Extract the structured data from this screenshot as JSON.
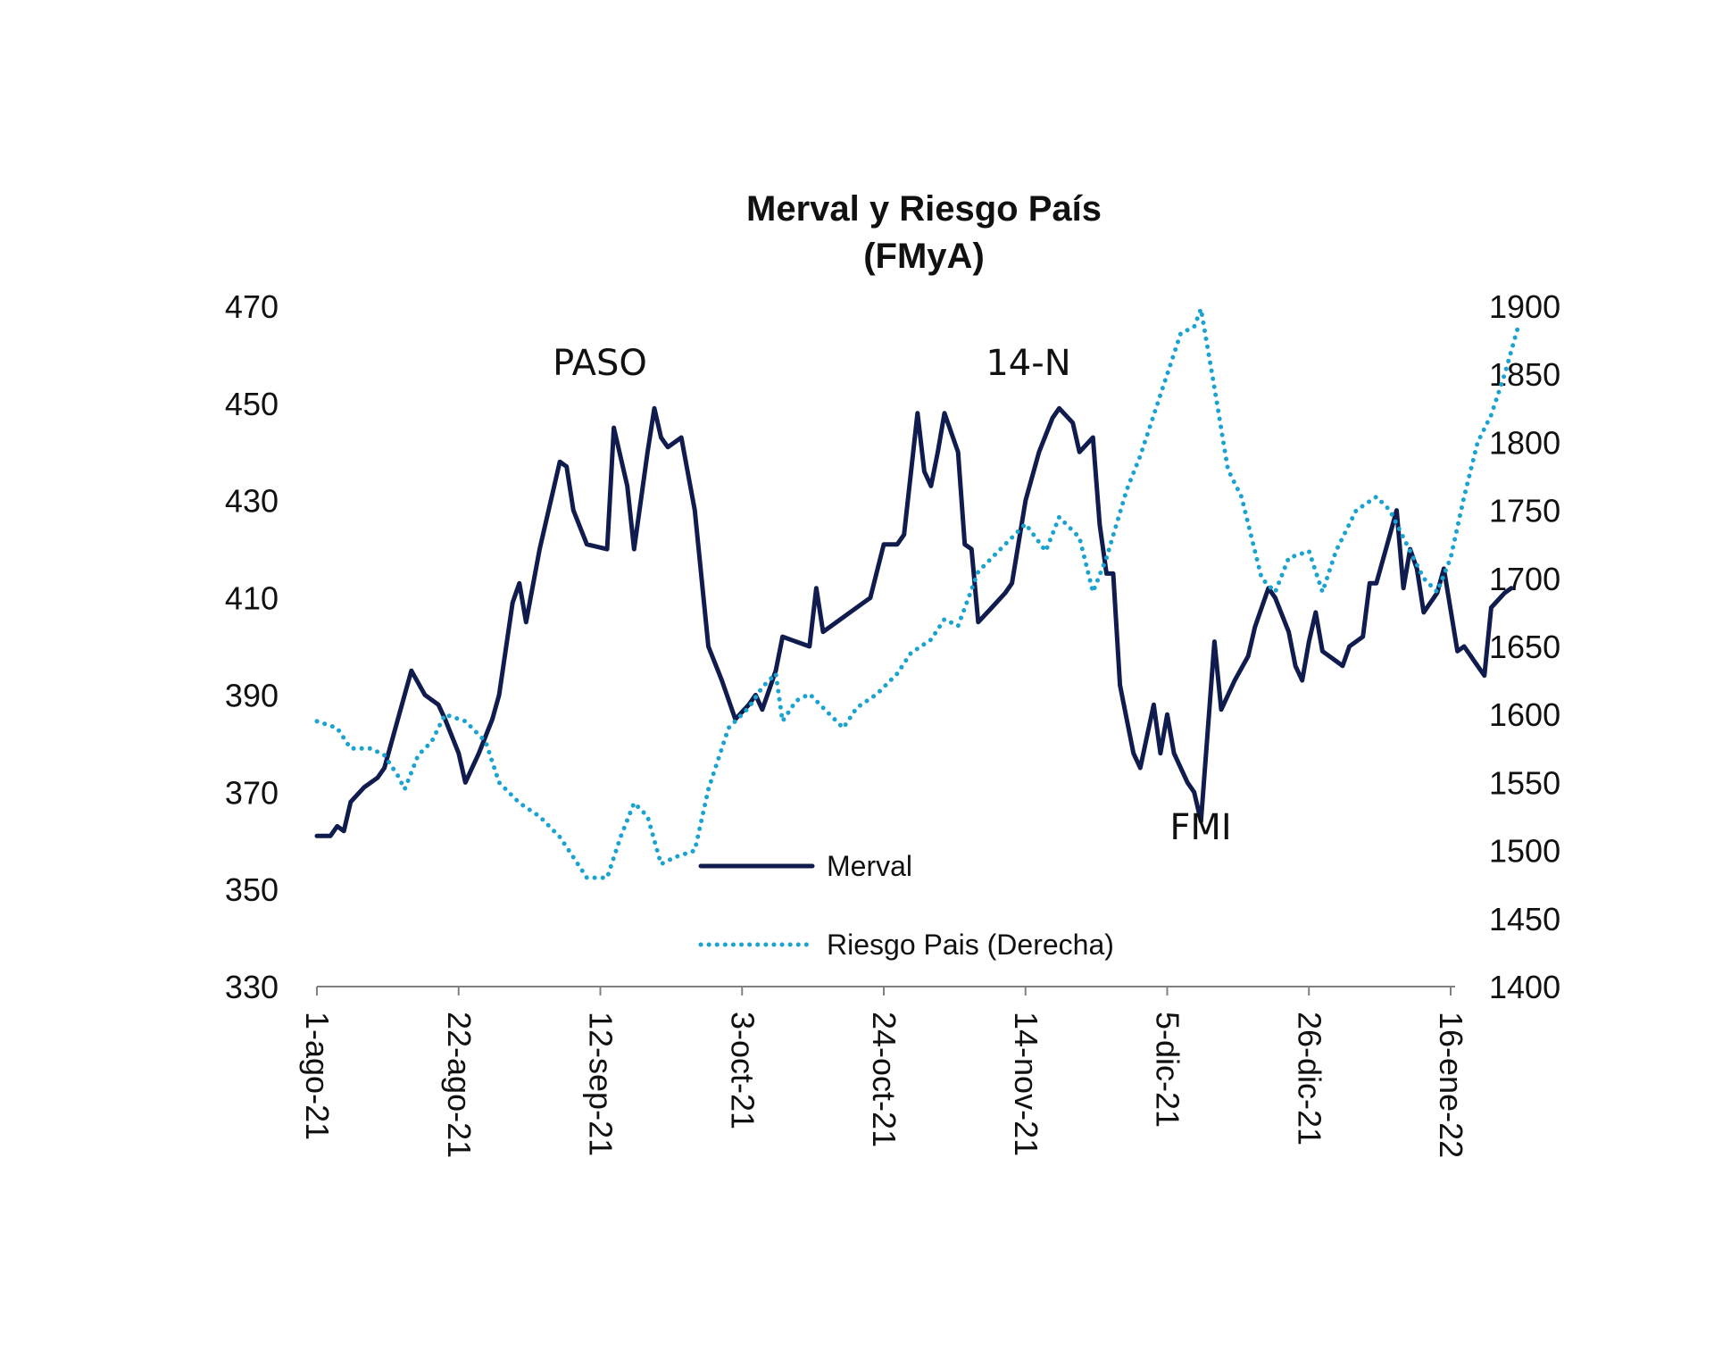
{
  "chart_data": {
    "type": "line",
    "title": "Merval y Riesgo País",
    "subtitle": "(FMyA)",
    "grid": false,
    "legend_position": "bottom-center",
    "x_tick_labels": [
      "1-ago-21",
      "22-ago-21",
      "12-sep-21",
      "3-oct-21",
      "24-oct-21",
      "14-nov-21",
      "5-dic-21",
      "26-dic-21",
      "16-ene-22"
    ],
    "y_left": {
      "range": [
        330,
        470
      ],
      "ticks": [
        470,
        450,
        430,
        410,
        390,
        370,
        350,
        330
      ]
    },
    "y_right": {
      "range": [
        1400,
        1900
      ],
      "ticks": [
        1900,
        1850,
        1800,
        1750,
        1700,
        1650,
        1600,
        1550,
        1500,
        1450,
        1400
      ]
    },
    "annotations": [
      {
        "text": "PASO",
        "x": "12-sep-21",
        "y": 455,
        "axis": "left"
      },
      {
        "text": "14-N",
        "x": "14-nov-21",
        "y": 455,
        "axis": "left"
      },
      {
        "text": "FMI",
        "x": "5-dic-21",
        "y": 361,
        "axis": "left"
      }
    ],
    "series": [
      {
        "name": "Merval",
        "axis": "left",
        "color": "#0f1c4d",
        "style": "solid",
        "points": [
          [
            "2021-08-01",
            361
          ],
          [
            "2021-08-03",
            361
          ],
          [
            "2021-08-04",
            363
          ],
          [
            "2021-08-05",
            362
          ],
          [
            "2021-08-06",
            368
          ],
          [
            "2021-08-08",
            371
          ],
          [
            "2021-08-10",
            373
          ],
          [
            "2021-08-11",
            375
          ],
          [
            "2021-08-13",
            385
          ],
          [
            "2021-08-15",
            395
          ],
          [
            "2021-08-17",
            390
          ],
          [
            "2021-08-19",
            388
          ],
          [
            "2021-08-20",
            385
          ],
          [
            "2021-08-22",
            378
          ],
          [
            "2021-08-23",
            372
          ],
          [
            "2021-08-25",
            378
          ],
          [
            "2021-08-27",
            385
          ],
          [
            "2021-08-28",
            390
          ],
          [
            "2021-08-30",
            409
          ],
          [
            "2021-08-31",
            413
          ],
          [
            "2021-09-01",
            405
          ],
          [
            "2021-09-03",
            420
          ],
          [
            "2021-09-06",
            438
          ],
          [
            "2021-09-07",
            437
          ],
          [
            "2021-09-08",
            428
          ],
          [
            "2021-09-10",
            421
          ],
          [
            "2021-09-13",
            420
          ],
          [
            "2021-09-14",
            445
          ],
          [
            "2021-09-16",
            433
          ],
          [
            "2021-09-17",
            420
          ],
          [
            "2021-09-19",
            440
          ],
          [
            "2021-09-20",
            449
          ],
          [
            "2021-09-21",
            443
          ],
          [
            "2021-09-22",
            441
          ],
          [
            "2021-09-24",
            443
          ],
          [
            "2021-09-26",
            428
          ],
          [
            "2021-09-28",
            400
          ],
          [
            "2021-09-30",
            393
          ],
          [
            "2021-10-02",
            385
          ],
          [
            "2021-10-04",
            388
          ],
          [
            "2021-10-05",
            390
          ],
          [
            "2021-10-06",
            387
          ],
          [
            "2021-10-08",
            395
          ],
          [
            "2021-10-09",
            402
          ],
          [
            "2021-10-11",
            401
          ],
          [
            "2021-10-13",
            400
          ],
          [
            "2021-10-14",
            412
          ],
          [
            "2021-10-15",
            403
          ],
          [
            "2021-10-17",
            405
          ],
          [
            "2021-10-19",
            407
          ],
          [
            "2021-10-21",
            409
          ],
          [
            "2021-10-22",
            410
          ],
          [
            "2021-10-24",
            421
          ],
          [
            "2021-10-26",
            421
          ],
          [
            "2021-10-27",
            423
          ],
          [
            "2021-10-29",
            448
          ],
          [
            "2021-10-30",
            436
          ],
          [
            "2021-10-31",
            433
          ],
          [
            "2021-11-01",
            440
          ],
          [
            "2021-11-02",
            448
          ],
          [
            "2021-11-04",
            440
          ],
          [
            "2021-11-05",
            421
          ],
          [
            "2021-11-06",
            420
          ],
          [
            "2021-11-07",
            405
          ],
          [
            "2021-11-09",
            408
          ],
          [
            "2021-11-11",
            411
          ],
          [
            "2021-11-12",
            413
          ],
          [
            "2021-11-14",
            430
          ],
          [
            "2021-11-16",
            440
          ],
          [
            "2021-11-18",
            447
          ],
          [
            "2021-11-19",
            449
          ],
          [
            "2021-11-21",
            446
          ],
          [
            "2021-11-22",
            440
          ],
          [
            "2021-11-24",
            443
          ],
          [
            "2021-11-25",
            425
          ],
          [
            "2021-11-26",
            415
          ],
          [
            "2021-11-27",
            415
          ],
          [
            "2021-11-28",
            392
          ],
          [
            "2021-11-30",
            378
          ],
          [
            "2021-12-01",
            375
          ],
          [
            "2021-12-03",
            388
          ],
          [
            "2021-12-04",
            378
          ],
          [
            "2021-12-05",
            386
          ],
          [
            "2021-12-06",
            378
          ],
          [
            "2021-12-08",
            372
          ],
          [
            "2021-12-09",
            370
          ],
          [
            "2021-12-10",
            364
          ],
          [
            "2021-12-12",
            401
          ],
          [
            "2021-12-13",
            387
          ],
          [
            "2021-12-15",
            393
          ],
          [
            "2021-12-17",
            398
          ],
          [
            "2021-12-18",
            404
          ],
          [
            "2021-12-20",
            412
          ],
          [
            "2021-12-21",
            410
          ],
          [
            "2021-12-23",
            403
          ],
          [
            "2021-12-24",
            396
          ],
          [
            "2021-12-25",
            393
          ],
          [
            "2021-12-26",
            401
          ],
          [
            "2021-12-27",
            407
          ],
          [
            "2021-12-28",
            399
          ],
          [
            "2021-12-30",
            397
          ],
          [
            "2021-12-31",
            396
          ],
          [
            "2022-01-01",
            400
          ],
          [
            "2022-01-03",
            402
          ],
          [
            "2022-01-04",
            413
          ],
          [
            "2022-01-05",
            413
          ],
          [
            "2022-01-07",
            423
          ],
          [
            "2022-01-08",
            428
          ],
          [
            "2022-01-09",
            412
          ],
          [
            "2022-01-10",
            420
          ],
          [
            "2022-01-11",
            416
          ],
          [
            "2022-01-12",
            407
          ],
          [
            "2022-01-14",
            411
          ],
          [
            "2022-01-15",
            416
          ],
          [
            "2022-01-17",
            399
          ],
          [
            "2022-01-18",
            400
          ],
          [
            "2022-01-20",
            396
          ],
          [
            "2022-01-21",
            394
          ],
          [
            "2022-01-22",
            408
          ],
          [
            "2022-01-24",
            411
          ],
          [
            "2022-01-25",
            412
          ]
        ]
      },
      {
        "name": "Riesgo Pais (Derecha)",
        "axis": "right",
        "color": "#1aa3d0",
        "style": "dotted",
        "points": [
          [
            "2021-08-01",
            1595
          ],
          [
            "2021-08-04",
            1590
          ],
          [
            "2021-08-06",
            1575
          ],
          [
            "2021-08-09",
            1575
          ],
          [
            "2021-08-11",
            1570
          ],
          [
            "2021-08-13",
            1555
          ],
          [
            "2021-08-14",
            1545
          ],
          [
            "2021-08-16",
            1570
          ],
          [
            "2021-08-18",
            1580
          ],
          [
            "2021-08-20",
            1600
          ],
          [
            "2021-08-23",
            1595
          ],
          [
            "2021-08-26",
            1580
          ],
          [
            "2021-08-28",
            1550
          ],
          [
            "2021-08-31",
            1535
          ],
          [
            "2021-09-03",
            1525
          ],
          [
            "2021-09-06",
            1510
          ],
          [
            "2021-09-08",
            1495
          ],
          [
            "2021-09-10",
            1480
          ],
          [
            "2021-09-13",
            1480
          ],
          [
            "2021-09-15",
            1510
          ],
          [
            "2021-09-17",
            1535
          ],
          [
            "2021-09-19",
            1525
          ],
          [
            "2021-09-21",
            1490
          ],
          [
            "2021-09-23",
            1495
          ],
          [
            "2021-09-26",
            1500
          ],
          [
            "2021-09-28",
            1545
          ],
          [
            "2021-10-01",
            1590
          ],
          [
            "2021-10-04",
            1605
          ],
          [
            "2021-10-06",
            1620
          ],
          [
            "2021-10-08",
            1630
          ],
          [
            "2021-10-09",
            1595
          ],
          [
            "2021-10-11",
            1610
          ],
          [
            "2021-10-13",
            1615
          ],
          [
            "2021-10-16",
            1600
          ],
          [
            "2021-10-18",
            1590
          ],
          [
            "2021-10-20",
            1605
          ],
          [
            "2021-10-23",
            1615
          ],
          [
            "2021-10-26",
            1630
          ],
          [
            "2021-10-28",
            1645
          ],
          [
            "2021-10-31",
            1655
          ],
          [
            "2021-11-02",
            1670
          ],
          [
            "2021-11-04",
            1665
          ],
          [
            "2021-11-07",
            1705
          ],
          [
            "2021-11-10",
            1720
          ],
          [
            "2021-11-12",
            1730
          ],
          [
            "2021-11-14",
            1740
          ],
          [
            "2021-11-17",
            1720
          ],
          [
            "2021-11-19",
            1745
          ],
          [
            "2021-11-22",
            1730
          ],
          [
            "2021-11-24",
            1690
          ],
          [
            "2021-11-26",
            1715
          ],
          [
            "2021-11-29",
            1765
          ],
          [
            "2021-12-01",
            1790
          ],
          [
            "2021-12-03",
            1820
          ],
          [
            "2021-12-05",
            1850
          ],
          [
            "2021-12-07",
            1880
          ],
          [
            "2021-12-09",
            1885
          ],
          [
            "2021-12-10",
            1898
          ],
          [
            "2021-12-12",
            1840
          ],
          [
            "2021-12-14",
            1780
          ],
          [
            "2021-12-16",
            1760
          ],
          [
            "2021-12-19",
            1700
          ],
          [
            "2021-12-21",
            1690
          ],
          [
            "2021-12-23",
            1715
          ],
          [
            "2021-12-26",
            1720
          ],
          [
            "2021-12-28",
            1690
          ],
          [
            "2021-12-30",
            1720
          ],
          [
            "2022-01-02",
            1750
          ],
          [
            "2022-01-05",
            1760
          ],
          [
            "2022-01-07",
            1750
          ],
          [
            "2022-01-09",
            1730
          ],
          [
            "2022-01-12",
            1700
          ],
          [
            "2022-01-14",
            1690
          ],
          [
            "2022-01-16",
            1715
          ],
          [
            "2022-01-18",
            1760
          ],
          [
            "2022-01-20",
            1800
          ],
          [
            "2022-01-22",
            1820
          ],
          [
            "2022-01-24",
            1850
          ],
          [
            "2022-01-26",
            1885
          ]
        ]
      }
    ]
  }
}
